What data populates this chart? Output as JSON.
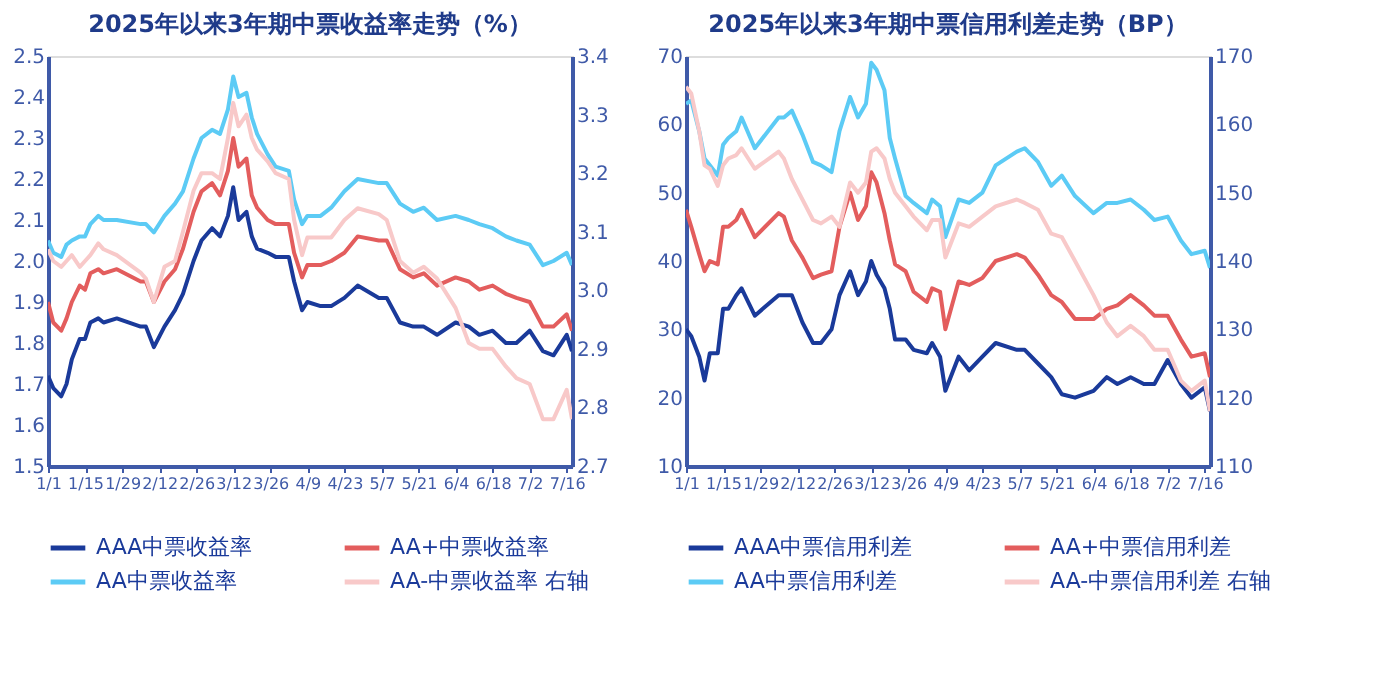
{
  "chart_data": [
    {
      "type": "line",
      "title": "2025年以来3年期中票收益率走势（%）",
      "legend": "bottom",
      "x": [
        "2025-01-01",
        "2025-01-03",
        "2025-01-06",
        "2025-01-08",
        "2025-01-10",
        "2025-01-13",
        "2025-01-15",
        "2025-01-17",
        "2025-01-20",
        "2025-01-22",
        "2025-01-27",
        "2025-02-05",
        "2025-02-07",
        "2025-02-10",
        "2025-02-14",
        "2025-02-18",
        "2025-02-21",
        "2025-02-25",
        "2025-02-28",
        "2025-03-04",
        "2025-03-07",
        "2025-03-10",
        "2025-03-12",
        "2025-03-14",
        "2025-03-17",
        "2025-03-19",
        "2025-03-21",
        "2025-03-25",
        "2025-03-28",
        "2025-04-02",
        "2025-04-04",
        "2025-04-07",
        "2025-04-09",
        "2025-04-14",
        "2025-04-18",
        "2025-04-23",
        "2025-04-28",
        "2025-05-06",
        "2025-05-09",
        "2025-05-14",
        "2025-05-19",
        "2025-05-23",
        "2025-05-28",
        "2025-06-04",
        "2025-06-09",
        "2025-06-13",
        "2025-06-18",
        "2025-06-23",
        "2025-06-27",
        "2025-07-02",
        "2025-07-07",
        "2025-07-11",
        "2025-07-16",
        "2025-07-18"
      ],
      "xlim": [
        "2025-01-01",
        "2025-07-18"
      ],
      "xticks": [
        {
          "value": "2025-01-01",
          "label": "1/1"
        },
        {
          "value": "2025-01-15",
          "label": "1/15"
        },
        {
          "value": "2025-01-29",
          "label": "1/29"
        },
        {
          "value": "2025-02-12",
          "label": "2/12"
        },
        {
          "value": "2025-02-26",
          "label": "2/26"
        },
        {
          "value": "2025-03-12",
          "label": "3/12"
        },
        {
          "value": "2025-03-26",
          "label": "3/26"
        },
        {
          "value": "2025-04-09",
          "label": "4/9"
        },
        {
          "value": "2025-04-23",
          "label": "4/23"
        },
        {
          "value": "2025-05-07",
          "label": "5/7"
        },
        {
          "value": "2025-05-21",
          "label": "5/21"
        },
        {
          "value": "2025-06-04",
          "label": "6/4"
        },
        {
          "value": "2025-06-18",
          "label": "6/18"
        },
        {
          "value": "2025-07-02",
          "label": "7/2"
        },
        {
          "value": "2025-07-16",
          "label": "7/16"
        }
      ],
      "ylim": [
        1.5,
        2.5
      ],
      "yticks": [
        1.5,
        1.6,
        1.7,
        1.8,
        1.9,
        {
          "value": 2,
          "label": "2.0"
        },
        2.1,
        2.2,
        2.3,
        2.4,
        2.5
      ],
      "y2lim": [
        2.7,
        3.4
      ],
      "y2ticks": [
        2.7,
        2.8,
        2.9,
        {
          "value": 3,
          "label": "3.0"
        },
        3.1,
        3.2,
        3.3,
        3.4
      ],
      "series": [
        {
          "name": "AAA中票收益率",
          "color": "#1a3a9a",
          "values": [
            1.72,
            1.69,
            1.67,
            1.7,
            1.76,
            1.81,
            1.81,
            1.85,
            1.86,
            1.85,
            1.86,
            1.84,
            1.84,
            1.79,
            1.84,
            1.88,
            1.92,
            2.0,
            2.05,
            2.08,
            2.06,
            2.11,
            2.18,
            2.1,
            2.12,
            2.06,
            2.03,
            2.02,
            2.01,
            2.01,
            1.95,
            1.88,
            1.9,
            1.89,
            1.89,
            1.91,
            1.94,
            1.91,
            1.91,
            1.85,
            1.84,
            1.84,
            1.82,
            1.85,
            1.84,
            1.82,
            1.83,
            1.8,
            1.8,
            1.83,
            1.78,
            1.77,
            1.82,
            1.78
          ]
        },
        {
          "name": "AA+中票收益率",
          "color": "#e35d5d",
          "values": [
            1.9,
            1.85,
            1.83,
            1.86,
            1.9,
            1.94,
            1.93,
            1.97,
            1.98,
            1.97,
            1.98,
            1.95,
            1.95,
            1.9,
            1.95,
            1.98,
            2.03,
            2.12,
            2.17,
            2.19,
            2.16,
            2.22,
            2.3,
            2.23,
            2.25,
            2.16,
            2.13,
            2.1,
            2.09,
            2.09,
            2.02,
            1.96,
            1.99,
            1.99,
            2.0,
            2.02,
            2.06,
            2.05,
            2.05,
            1.98,
            1.96,
            1.97,
            1.94,
            1.96,
            1.95,
            1.93,
            1.94,
            1.92,
            1.91,
            1.9,
            1.84,
            1.84,
            1.87,
            1.83
          ]
        },
        {
          "name": "AA中票收益率",
          "color": "#5ccbf5",
          "values": [
            2.05,
            2.02,
            2.01,
            2.04,
            2.05,
            2.06,
            2.06,
            2.09,
            2.11,
            2.1,
            2.1,
            2.09,
            2.09,
            2.07,
            2.11,
            2.14,
            2.17,
            2.25,
            2.3,
            2.32,
            2.31,
            2.37,
            2.45,
            2.4,
            2.41,
            2.35,
            2.31,
            2.26,
            2.23,
            2.22,
            2.15,
            2.09,
            2.11,
            2.11,
            2.13,
            2.17,
            2.2,
            2.19,
            2.19,
            2.14,
            2.12,
            2.13,
            2.1,
            2.11,
            2.1,
            2.09,
            2.08,
            2.06,
            2.05,
            2.04,
            1.99,
            2.0,
            2.02,
            1.99
          ]
        },
        {
          "name": "AA-中票收益率 右轴",
          "color": "#f8c9c9",
          "axis": "y2",
          "values": [
            3.07,
            3.05,
            3.04,
            3.05,
            3.06,
            3.04,
            3.05,
            3.06,
            3.08,
            3.07,
            3.06,
            3.03,
            3.02,
            2.98,
            3.04,
            3.05,
            3.1,
            3.17,
            3.2,
            3.2,
            3.19,
            3.26,
            3.32,
            3.28,
            3.3,
            3.26,
            3.24,
            3.22,
            3.2,
            3.19,
            3.12,
            3.06,
            3.09,
            3.09,
            3.09,
            3.12,
            3.14,
            3.13,
            3.12,
            3.05,
            3.03,
            3.04,
            3.02,
            2.97,
            2.91,
            2.9,
            2.9,
            2.87,
            2.85,
            2.84,
            2.78,
            2.78,
            2.83,
            2.78
          ]
        }
      ]
    },
    {
      "type": "line",
      "title": "2025年以来3年期中票信用利差走势（BP）",
      "legend": "bottom",
      "x": [
        "2025-01-01",
        "2025-01-03",
        "2025-01-06",
        "2025-01-08",
        "2025-01-10",
        "2025-01-13",
        "2025-01-15",
        "2025-01-17",
        "2025-01-20",
        "2025-01-22",
        "2025-01-27",
        "2025-02-05",
        "2025-02-07",
        "2025-02-10",
        "2025-02-14",
        "2025-02-18",
        "2025-02-21",
        "2025-02-25",
        "2025-02-28",
        "2025-03-04",
        "2025-03-07",
        "2025-03-10",
        "2025-03-12",
        "2025-03-14",
        "2025-03-17",
        "2025-03-19",
        "2025-03-21",
        "2025-03-25",
        "2025-03-28",
        "2025-04-02",
        "2025-04-04",
        "2025-04-07",
        "2025-04-09",
        "2025-04-14",
        "2025-04-18",
        "2025-04-23",
        "2025-04-28",
        "2025-05-06",
        "2025-05-09",
        "2025-05-14",
        "2025-05-19",
        "2025-05-23",
        "2025-05-28",
        "2025-06-04",
        "2025-06-09",
        "2025-06-13",
        "2025-06-18",
        "2025-06-23",
        "2025-06-27",
        "2025-07-02",
        "2025-07-07",
        "2025-07-11",
        "2025-07-16",
        "2025-07-18"
      ],
      "xlim": [
        "2025-01-01",
        "2025-07-18"
      ],
      "xticks": [
        {
          "value": "2025-01-01",
          "label": "1/1"
        },
        {
          "value": "2025-01-15",
          "label": "1/15"
        },
        {
          "value": "2025-01-29",
          "label": "1/29"
        },
        {
          "value": "2025-02-12",
          "label": "2/12"
        },
        {
          "value": "2025-02-26",
          "label": "2/26"
        },
        {
          "value": "2025-03-12",
          "label": "3/12"
        },
        {
          "value": "2025-03-26",
          "label": "3/26"
        },
        {
          "value": "2025-04-09",
          "label": "4/9"
        },
        {
          "value": "2025-04-23",
          "label": "4/23"
        },
        {
          "value": "2025-05-07",
          "label": "5/7"
        },
        {
          "value": "2025-05-21",
          "label": "5/21"
        },
        {
          "value": "2025-06-04",
          "label": "6/4"
        },
        {
          "value": "2025-06-18",
          "label": "6/18"
        },
        {
          "value": "2025-07-02",
          "label": "7/2"
        },
        {
          "value": "2025-07-16",
          "label": "7/16"
        }
      ],
      "ylim": [
        10,
        70
      ],
      "yticks": [
        10,
        20,
        30,
        40,
        50,
        60,
        70
      ],
      "y2lim": [
        110,
        170
      ],
      "y2ticks": [
        110,
        120,
        130,
        140,
        150,
        160,
        170
      ],
      "series": [
        {
          "name": "AAA中票信用利差",
          "color": "#1a3a9a",
          "values": [
            30,
            29,
            26,
            22.5,
            26.5,
            26.5,
            33,
            33,
            35,
            36,
            32,
            35,
            35,
            35,
            31,
            28,
            28,
            30,
            35,
            38.5,
            35,
            37,
            40,
            38,
            36,
            33,
            28.5,
            28.5,
            27,
            26.5,
            28,
            26,
            21,
            26,
            24,
            26,
            28,
            27,
            27,
            25,
            23,
            20.5,
            20,
            21,
            23,
            22,
            23,
            22,
            22,
            25.5,
            22,
            20,
            21.5,
            18
          ]
        },
        {
          "name": "AA+中票信用利差",
          "color": "#e35d5d",
          "values": [
            47.5,
            45,
            41,
            38.5,
            40,
            39.5,
            45,
            45,
            46,
            47.5,
            43.5,
            47,
            46.5,
            43,
            40.5,
            37.5,
            38,
            38.5,
            45,
            50,
            46,
            48,
            53,
            51.5,
            47,
            43,
            39.5,
            38.5,
            35.5,
            34,
            36,
            35.5,
            30,
            37,
            36.5,
            37.5,
            40,
            41,
            40.5,
            38,
            35,
            34,
            31.5,
            31.5,
            33,
            33.5,
            35,
            33.5,
            32,
            32,
            28.5,
            26,
            26.5,
            23
          ]
        },
        {
          "name": "AA中票信用利差",
          "color": "#5ccbf5",
          "values": [
            63,
            63.5,
            59,
            55,
            54,
            52.5,
            57,
            58,
            59,
            61,
            56.5,
            61,
            61,
            62,
            58.5,
            54.5,
            54,
            53,
            59,
            64,
            61,
            63,
            69,
            68,
            65,
            58,
            55,
            49.5,
            48.5,
            47,
            49,
            48,
            43.5,
            49,
            48.5,
            50,
            54,
            56,
            56.5,
            54.5,
            51,
            52.5,
            49.5,
            47,
            48.5,
            48.5,
            49,
            47.5,
            46,
            46.5,
            43,
            41,
            41.5,
            39
          ]
        },
        {
          "name": "AA-中票信用利差 右轴",
          "color": "#f8c9c9",
          "axis": "y2",
          "values": [
            165.5,
            164.5,
            159,
            154,
            153.5,
            151,
            154,
            155,
            155.5,
            156.5,
            153.5,
            156,
            155,
            152,
            149,
            146,
            145.5,
            146.5,
            145,
            151.5,
            150,
            151.5,
            156,
            156.5,
            155,
            152,
            150,
            148,
            146.5,
            144.5,
            146,
            146,
            140.5,
            145.5,
            145,
            146.5,
            148,
            149,
            148.5,
            147.5,
            144,
            143.5,
            140,
            135,
            131,
            129,
            130.5,
            129,
            127,
            127,
            122.5,
            121,
            122.5,
            118
          ]
        }
      ]
    }
  ]
}
